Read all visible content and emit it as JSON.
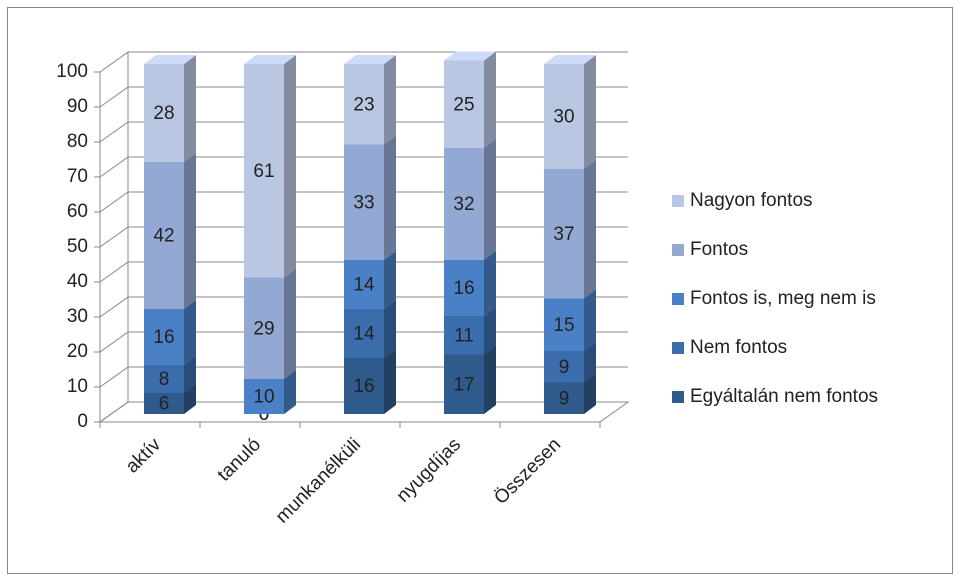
{
  "chart_data": {
    "type": "bar",
    "stacked": true,
    "categories": [
      "aktív",
      "tanuló",
      "munkanélküli",
      "nyugdíjas",
      "Összesen"
    ],
    "series": [
      {
        "name": "Egyáltalán nem fontos",
        "color": "#2f5b8c",
        "values": [
          6,
          0,
          16,
          17,
          9
        ]
      },
      {
        "name": "Nem fontos",
        "color": "#3b6cab",
        "values": [
          8,
          0,
          14,
          11,
          9
        ]
      },
      {
        "name": "Fontos is, meg nem is",
        "color": "#4a80c6",
        "values": [
          16,
          10,
          14,
          16,
          15
        ]
      },
      {
        "name": "Fontos",
        "color": "#93a9d3",
        "values": [
          42,
          29,
          33,
          32,
          37
        ]
      },
      {
        "name": "Nagyon fontos",
        "color": "#b9c7e3",
        "values": [
          28,
          61,
          23,
          25,
          30
        ]
      }
    ],
    "ylim": [
      0,
      100
    ],
    "yticks": [
      0,
      10,
      20,
      30,
      40,
      50,
      60,
      70,
      80,
      90,
      100
    ],
    "grid": true,
    "legend": "right"
  }
}
